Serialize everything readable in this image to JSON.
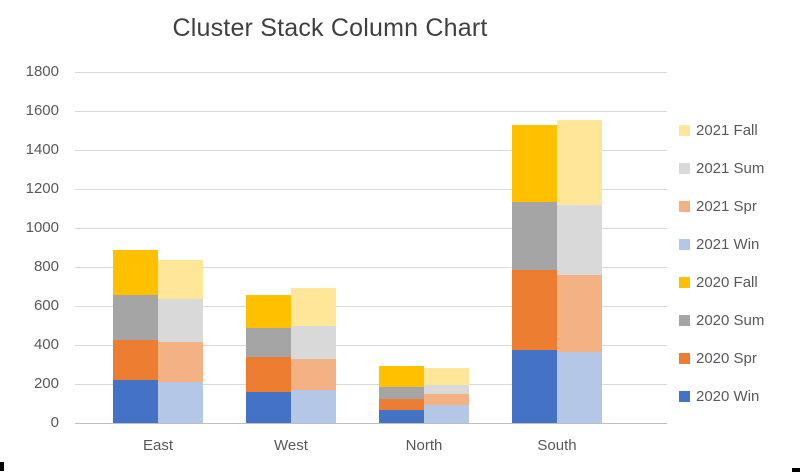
{
  "chart_data": {
    "type": "bar",
    "variant": "clustered-stacked-column",
    "title": "Cluster Stack Column Chart",
    "categories": [
      "East",
      "West",
      "North",
      "South"
    ],
    "clusters": [
      "2020",
      "2021"
    ],
    "stack_order_bottom_to_top": [
      "Win",
      "Spr",
      "Sum",
      "Fall"
    ],
    "series": [
      {
        "name": "2020 Win",
        "cluster": "2020",
        "color": "#4472C4",
        "values": [
          220,
          160,
          65,
          375
        ]
      },
      {
        "name": "2020 Spr",
        "cluster": "2020",
        "color": "#ED7D31",
        "values": [
          205,
          180,
          60,
          410
        ]
      },
      {
        "name": "2020 Sum",
        "cluster": "2020",
        "color": "#A5A5A5",
        "values": [
          230,
          145,
          60,
          350
        ]
      },
      {
        "name": "2020 Fall",
        "cluster": "2020",
        "color": "#FFC000",
        "values": [
          230,
          170,
          105,
          395
        ]
      },
      {
        "name": "2021 Win",
        "cluster": "2021",
        "color": "#B4C7E7",
        "values": [
          210,
          170,
          90,
          365
        ]
      },
      {
        "name": "2021 Spr",
        "cluster": "2021",
        "color": "#F4B183",
        "values": [
          205,
          160,
          60,
          395
        ]
      },
      {
        "name": "2021 Sum",
        "cluster": "2021",
        "color": "#D9D9D9",
        "values": [
          220,
          165,
          45,
          360
        ]
      },
      {
        "name": "2021 Fall",
        "cluster": "2021",
        "color": "#FFE699",
        "values": [
          200,
          195,
          85,
          435
        ]
      }
    ],
    "cluster_totals": {
      "2020": [
        885,
        655,
        290,
        1530
      ],
      "2021": [
        835,
        690,
        280,
        1555
      ]
    },
    "legend": [
      "2021 Fall",
      "2021 Sum",
      "2021 Spr",
      "2021 Win",
      "2020 Fall",
      "2020 Sum",
      "2020 Spr",
      "2020 Win"
    ],
    "legend_position": "right",
    "y_axis": {
      "min": 0,
      "max": 1800,
      "step": 200,
      "ticks": [
        0,
        200,
        400,
        600,
        800,
        1000,
        1200,
        1400,
        1600,
        1800
      ]
    },
    "x_axis": {
      "label": ""
    },
    "gridlines": true,
    "colors": {
      "grid": "#d9d9d9",
      "axis_text": "#595959",
      "title_text": "#404040",
      "background": "#ffffff"
    }
  }
}
